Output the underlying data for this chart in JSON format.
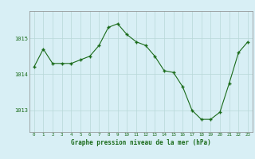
{
  "hours": [
    0,
    1,
    2,
    3,
    4,
    5,
    6,
    7,
    8,
    9,
    10,
    11,
    12,
    13,
    14,
    15,
    16,
    17,
    18,
    19,
    20,
    21,
    22,
    23
  ],
  "pressure": [
    1014.2,
    1014.7,
    1014.3,
    1014.3,
    1014.3,
    1014.4,
    1014.5,
    1014.8,
    1015.3,
    1015.4,
    1015.1,
    1014.9,
    1014.8,
    1014.5,
    1014.1,
    1014.05,
    1013.65,
    1013.0,
    1012.75,
    1012.75,
    1012.95,
    1013.75,
    1014.6,
    1014.9
  ],
  "line_color": "#1a6b1a",
  "marker": "+",
  "marker_size": 3.5,
  "bg_color": "#d8eff5",
  "grid_color": "#b8d8d8",
  "label_color": "#1a6b1a",
  "xlabel": "Graphe pression niveau de la mer (hPa)",
  "xlabel_color": "#1a6b1a",
  "yticks": [
    1013,
    1014,
    1015
  ],
  "ylim": [
    1012.4,
    1015.75
  ],
  "xlim": [
    -0.5,
    23.5
  ],
  "xtick_labels": [
    "0",
    "1",
    "2",
    "3",
    "4",
    "5",
    "6",
    "7",
    "8",
    "9",
    "10",
    "11",
    "12",
    "13",
    "14",
    "15",
    "16",
    "17",
    "18",
    "19",
    "20",
    "21",
    "22",
    "23"
  ]
}
